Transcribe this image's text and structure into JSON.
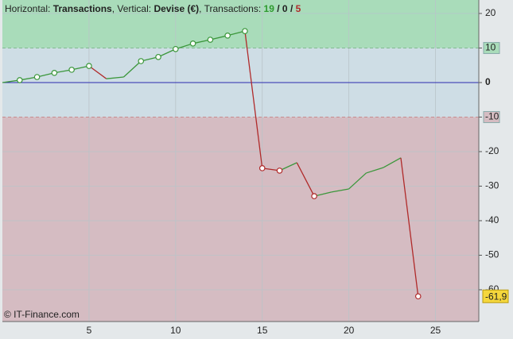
{
  "chart_data": {
    "type": "line",
    "title_parts": [
      "Horizontal:",
      "Transactions",
      ", Vertical:",
      "Devise (€)",
      ", Transactions:",
      "19",
      "/",
      "0",
      "/",
      "5"
    ],
    "watermark": "© IT-Finance.com",
    "x": [
      0,
      1,
      2,
      3,
      4,
      5,
      6,
      7,
      8,
      9,
      10,
      11,
      12,
      13,
      14,
      15,
      16,
      17,
      18,
      19,
      20,
      21,
      22,
      23,
      24
    ],
    "series": [
      {
        "name": "Devise (€)",
        "up_color": "#3b973b",
        "down_color": "#b02a2a",
        "values": [
          0,
          0.7,
          1.6,
          2.8,
          3.7,
          4.8,
          1.1,
          1.6,
          6.2,
          7.4,
          9.7,
          11.3,
          12.4,
          13.6,
          14.9,
          -24.8,
          -25.5,
          -23.2,
          -32.9,
          -31.7,
          -30.8,
          -26.2,
          -24.6,
          -21.8,
          -61.9
        ],
        "marker_x": [
          1,
          2,
          3,
          4,
          5,
          8,
          9,
          10,
          11,
          12,
          13,
          14,
          15,
          16,
          18,
          24
        ],
        "last_value_label": "-61,9"
      }
    ],
    "xlim": [
      0,
      27.5
    ],
    "xticks": [
      5,
      10,
      15,
      20,
      25
    ],
    "ylim": [
      -69.2,
      23.9
    ],
    "yticks": [
      20,
      10,
      0,
      -10,
      -20,
      -30,
      -40,
      -50,
      -60
    ],
    "upper_threshold": 10,
    "lower_threshold": -10,
    "upper_color": "#a9dcba",
    "middle_color": "#cedde5",
    "lower_color": "#d5bcc2",
    "zero_line_color": "#2b2bb0",
    "grid": true
  }
}
